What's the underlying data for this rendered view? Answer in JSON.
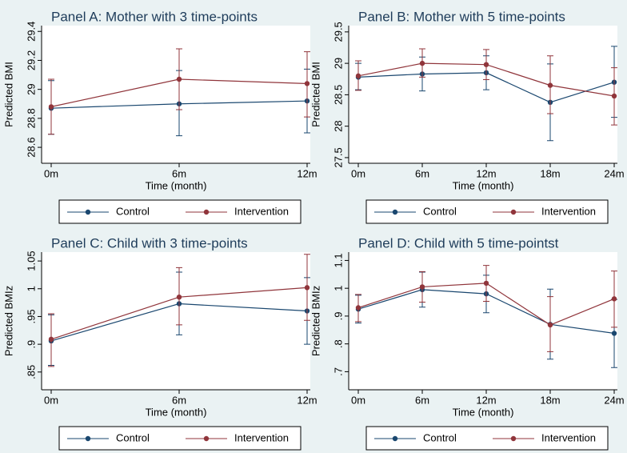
{
  "chart_data": [
    {
      "type": "line",
      "title": "Panel A: Mother with 3 time-points",
      "xlabel": "Time (month)",
      "ylabel": "Predicted BMI",
      "categories": [
        "0m",
        "6m",
        "12m"
      ],
      "ylim": [
        28.49,
        29.44
      ],
      "yticks": [
        28.6,
        28.8,
        29,
        29.2,
        29.4
      ],
      "series": [
        {
          "name": "Control",
          "color": "#1a476f",
          "values": [
            28.87,
            28.9,
            28.92
          ],
          "lower": [
            28.69,
            28.68,
            28.7
          ],
          "upper": [
            29.06,
            29.13,
            29.14
          ]
        },
        {
          "name": "Intervention",
          "color": "#90353b",
          "values": [
            28.88,
            29.07,
            29.04
          ],
          "lower": [
            28.69,
            28.86,
            28.81
          ],
          "upper": [
            29.07,
            29.28,
            29.26
          ]
        }
      ]
    },
    {
      "type": "line",
      "title": "Panel B: Mother with 5 time-points",
      "xlabel": "Time (month)",
      "ylabel": "Predicted BMI",
      "categories": [
        "0m",
        "6m",
        "12m",
        "18m",
        "24m"
      ],
      "ylim": [
        27.41,
        29.6
      ],
      "yticks": [
        27.5,
        28,
        28.5,
        29,
        29.5
      ],
      "series": [
        {
          "name": "Control",
          "color": "#1a476f",
          "values": [
            28.78,
            28.83,
            28.85,
            28.38,
            28.7
          ],
          "lower": [
            28.58,
            28.56,
            28.58,
            27.77,
            28.14
          ],
          "upper": [
            29.0,
            29.1,
            29.12,
            28.99,
            29.27
          ]
        },
        {
          "name": "Intervention",
          "color": "#90353b",
          "values": [
            28.8,
            29.0,
            28.98,
            28.65,
            28.48
          ],
          "lower": [
            28.57,
            28.78,
            28.74,
            28.2,
            28.02
          ],
          "upper": [
            29.04,
            29.23,
            29.22,
            29.12,
            28.93
          ]
        }
      ]
    },
    {
      "type": "line",
      "title": "Panel C: Child with 3 time-points",
      "xlabel": "Time (month)",
      "ylabel": "Predicted BMIz",
      "categories": [
        "0m",
        "6m",
        "12m"
      ],
      "ylim": [
        0.818,
        1.066
      ],
      "yticks": [
        {
          "value": 0.85,
          "label": ".85"
        },
        {
          "value": 0.9,
          "label": ".9"
        },
        {
          "value": 0.95,
          "label": ".95"
        },
        1,
        1.05
      ],
      "series": [
        {
          "name": "Control",
          "color": "#1a476f",
          "values": [
            0.906,
            0.973,
            0.96
          ],
          "lower": [
            0.862,
            0.917,
            0.9
          ],
          "upper": [
            0.953,
            1.03,
            1.02
          ]
        },
        {
          "name": "Intervention",
          "color": "#90353b",
          "values": [
            0.909,
            0.985,
            1.002
          ],
          "lower": [
            0.86,
            0.935,
            0.943
          ],
          "upper": [
            0.955,
            1.038,
            1.062
          ]
        }
      ]
    },
    {
      "type": "line",
      "title": "Panel D: Child with 5 time-pointst",
      "xlabel": "Time (month)",
      "ylabel": "Predicted BMIz",
      "categories": [
        "0m",
        "6m",
        "12m",
        "18m",
        "24m"
      ],
      "ylim": [
        0.635,
        1.13
      ],
      "yticks": [
        {
          "value": 0.7,
          "label": ".7"
        },
        {
          "value": 0.8,
          "label": ".8"
        },
        {
          "value": 0.9,
          "label": ".9"
        },
        1,
        1.1
      ],
      "series": [
        {
          "name": "Control",
          "color": "#1a476f",
          "values": [
            0.925,
            0.995,
            0.98,
            0.87,
            0.838
          ],
          "lower": [
            0.875,
            0.932,
            0.912,
            0.745,
            0.715
          ],
          "upper": [
            0.975,
            1.058,
            1.047,
            0.997,
            0.96
          ]
        },
        {
          "name": "Intervention",
          "color": "#90353b",
          "values": [
            0.93,
            1.005,
            1.018,
            0.868,
            0.962
          ],
          "lower": [
            0.88,
            0.95,
            0.953,
            0.772,
            0.86
          ],
          "upper": [
            0.978,
            1.06,
            1.082,
            0.97,
            1.062
          ]
        }
      ]
    }
  ]
}
